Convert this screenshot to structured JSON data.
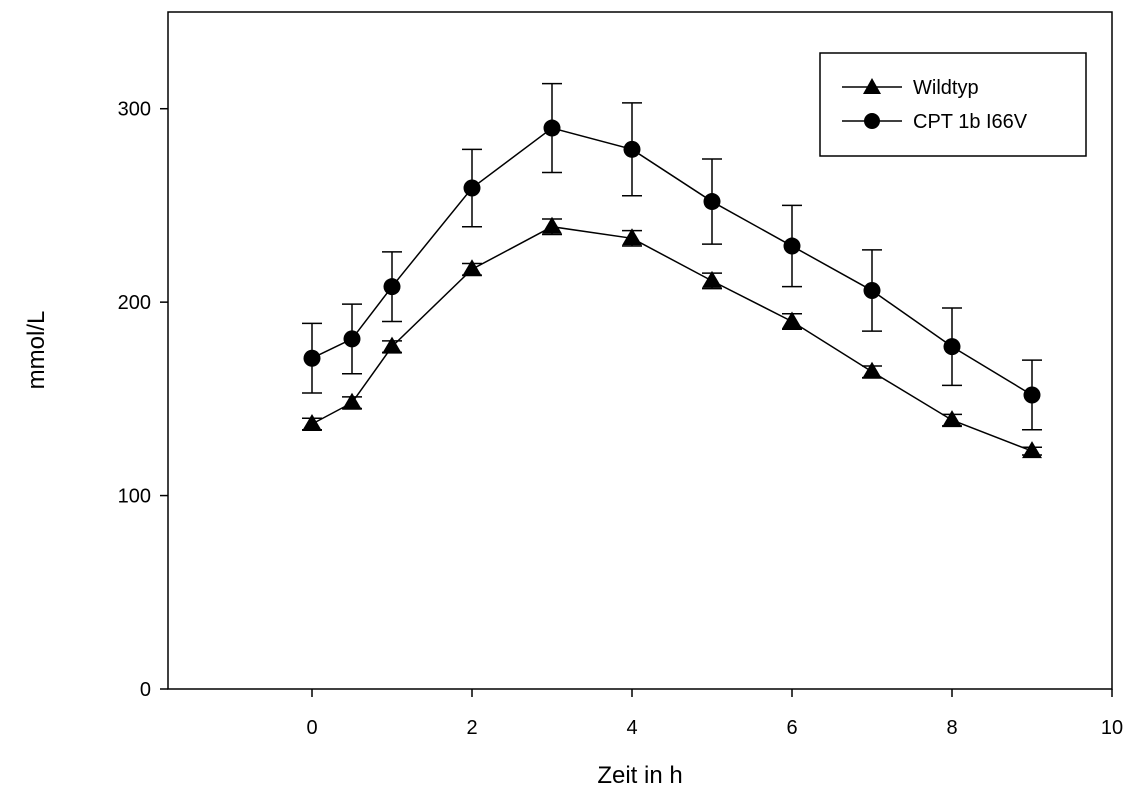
{
  "chart_data": {
    "type": "line",
    "title": "",
    "xlabel": "Zeit in h",
    "ylabel": "mmol/L",
    "xlim": [
      -1.8,
      10
    ],
    "ylim": [
      0,
      350
    ],
    "xticks": [
      0,
      2,
      4,
      6,
      8,
      10
    ],
    "yticks": [
      0,
      100,
      200,
      300
    ],
    "grid": false,
    "legend": {
      "position": "top-right",
      "frame": true
    },
    "colors": {
      "line": "#000000",
      "marker": "#000000",
      "axis": "#000000"
    },
    "series": [
      {
        "name": "Wildtyp",
        "marker": "triangle",
        "x": [
          0,
          0.5,
          1,
          2,
          3,
          4,
          5,
          6,
          7,
          8,
          9
        ],
        "y": [
          137,
          148,
          177,
          217,
          239,
          233,
          211,
          190,
          164,
          139,
          123
        ],
        "error": [
          3,
          3,
          3,
          3,
          4,
          4,
          4,
          4,
          3,
          3,
          2
        ]
      },
      {
        "name": "CPT 1b I66V",
        "marker": "circle",
        "x": [
          0,
          0.5,
          1,
          2,
          3,
          4,
          5,
          6,
          7,
          8,
          9
        ],
        "y": [
          171,
          181,
          208,
          259,
          290,
          279,
          252,
          229,
          206,
          177,
          152
        ],
        "error": [
          18,
          18,
          18,
          20,
          23,
          24,
          22,
          21,
          21,
          20,
          18
        ]
      }
    ]
  }
}
